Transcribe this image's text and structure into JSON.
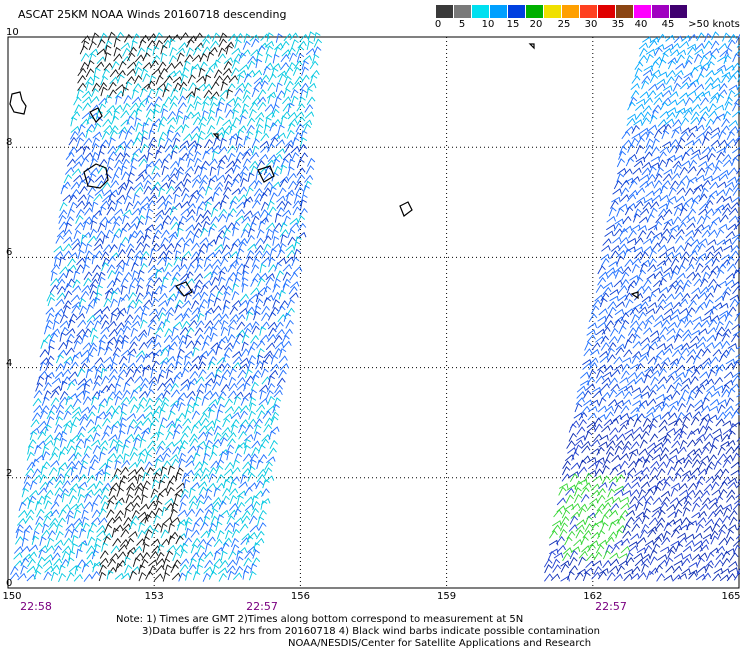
{
  "title": "ASCAT 25KM NOAA Winds 20160718 descending",
  "legend": {
    "colors": [
      "#3a3a3a",
      "#7a7a7a",
      "#00e0f0",
      "#00a0ff",
      "#0040e0",
      "#00b000",
      "#f0e000",
      "#ffa000",
      "#ff4020",
      "#e00000",
      "#8b4513",
      "#ff00ff",
      "#a000c0",
      "#400070"
    ],
    "labels": [
      "0",
      "5",
      "10",
      "15",
      "20",
      "25",
      "30",
      "35",
      "40",
      "45",
      ">50 knots"
    ]
  },
  "map": {
    "lon_labels": [
      "150",
      "153",
      "156",
      "159",
      "162",
      "165"
    ],
    "lat_labels": [
      "0",
      "2",
      "4",
      "6",
      "8",
      "10"
    ],
    "times": [
      "22:58",
      "22:57",
      "22:57"
    ]
  },
  "notes": {
    "line1": "Note: 1) Times are GMT 2)Times along bottom correspond to measurement at 5N",
    "line2": "3)Data buffer is 22 hrs from 20160718 4) Black wind barbs indicate possible contamination",
    "line3": "NOAA/NESDIS/Center for Satellite Applications and Research"
  }
}
